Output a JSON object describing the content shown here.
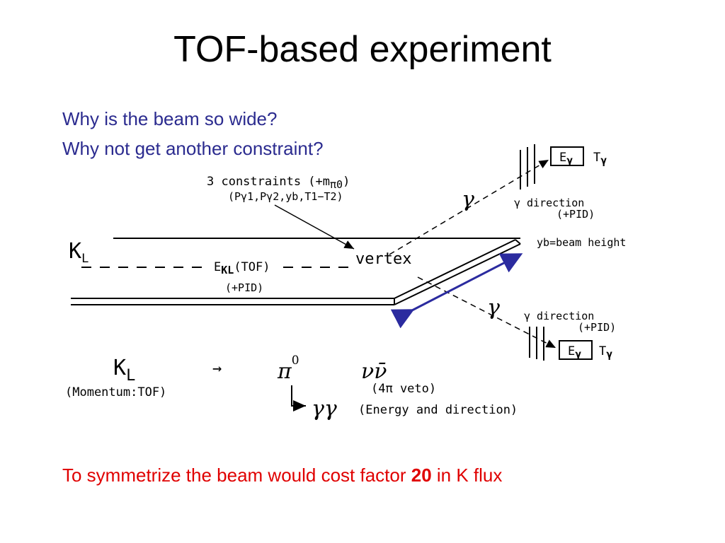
{
  "title": "TOF-based experiment",
  "questions": {
    "q1": "Why is the beam so wide?",
    "q2": "Why not get another constraint?"
  },
  "diagram": {
    "constraints_line1": "3 constraints (+m",
    "constraints_sub": "π0",
    "constraints_line1_end": ")",
    "constraints_line2": "(Pγ1,Pγ2,yb,T1−T2)",
    "kl_main": "K",
    "kl_sub": "L",
    "ekl_main": "E",
    "ekl_sub": "KL",
    "ekl_tof": "(TOF)",
    "pid_left": "(+PID)",
    "vertex": "vertex",
    "gamma": "γ",
    "yb": "yb=beam height",
    "top_detector": {
      "e": "E",
      "e_sub": "γ",
      "t": "T",
      "t_sub": "γ",
      "dir": "γ direction",
      "pid": "(+PID)"
    },
    "bottom_detector": {
      "dir": "γ direction",
      "pid": "(+PID)",
      "e": "E",
      "e_sub": "γ",
      "t": "T",
      "t_sub": "γ"
    },
    "decay": {
      "kl": "K",
      "kl_sub": "L",
      "arrow": "→",
      "pi": "π",
      "pi_sup": "0",
      "nunu": "νν̄",
      "momentum": "(Momentum:TOF)",
      "veto": "(4π veto)",
      "gg": "γγ",
      "energy": "(Energy and direction)"
    }
  },
  "footer": {
    "prefix": "To symmetrize the beam would cost factor ",
    "bold": "20",
    "suffix": " in K flux"
  },
  "colors": {
    "question": "#2b2b8f",
    "footer": "#e00000",
    "arrow": "#2b2b9f"
  }
}
